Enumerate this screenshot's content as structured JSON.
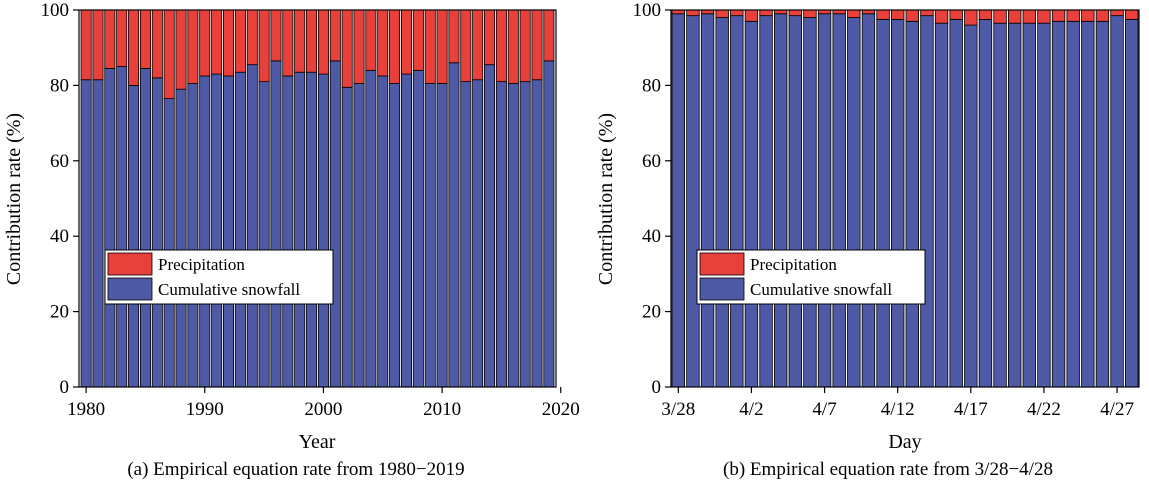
{
  "chart_data": [
    {
      "id": "a",
      "type": "bar",
      "stacked": true,
      "caption": "(a) Empirical equation rate from 1980−2019",
      "xlabel": "Year",
      "ylabel": "Contribution rate (%)",
      "ylim": [
        0,
        100
      ],
      "yticks": [
        0,
        20,
        40,
        60,
        80,
        100
      ],
      "xticks": [
        1980,
        1990,
        2000,
        2010,
        2020
      ],
      "xlim": [
        1979.4,
        2019.6
      ],
      "categories": [
        1980,
        1981,
        1982,
        1983,
        1984,
        1985,
        1986,
        1987,
        1988,
        1989,
        1990,
        1991,
        1992,
        1993,
        1994,
        1995,
        1996,
        1997,
        1998,
        1999,
        2000,
        2001,
        2002,
        2003,
        2004,
        2005,
        2006,
        2007,
        2008,
        2009,
        2010,
        2011,
        2012,
        2013,
        2014,
        2015,
        2016,
        2017,
        2018,
        2019
      ],
      "series": [
        {
          "name": "Cumulative snowfall",
          "color": "#4f5aa6",
          "values": [
            81.5,
            81.5,
            84.5,
            85,
            80,
            84.5,
            82,
            76.5,
            79,
            80.5,
            82.5,
            83,
            82.5,
            83.5,
            85.5,
            81,
            86.5,
            82.5,
            83.5,
            83.5,
            83,
            86.5,
            79.5,
            80.5,
            84,
            82.5,
            80.5,
            83,
            84,
            80.5,
            80.5,
            86,
            81,
            81.5,
            85.5,
            81,
            80.5,
            81,
            81.5,
            86.5
          ]
        },
        {
          "name": "Precipitation",
          "color": "#e8403b",
          "values": [
            18.5,
            18.5,
            15.5,
            15,
            20,
            15.5,
            18,
            23.5,
            21,
            19.5,
            17.5,
            17,
            17.5,
            16.5,
            14.5,
            19,
            13.5,
            17.5,
            16.5,
            16.5,
            17,
            13.5,
            20.5,
            19.5,
            16,
            17.5,
            19.5,
            17,
            16,
            19.5,
            19.5,
            14,
            19,
            18.5,
            14.5,
            19,
            19.5,
            19,
            18.5,
            13.5
          ]
        }
      ],
      "legend": {
        "placement": "center-left",
        "entries": [
          "Precipitation",
          "Cumulative snowfall"
        ]
      },
      "grid": false
    },
    {
      "id": "b",
      "type": "bar",
      "stacked": true,
      "caption": "(b) Empirical equation rate from 3/28−4/28",
      "xlabel": "Day",
      "ylabel": "Contribution rate (%)",
      "ylim": [
        0,
        100
      ],
      "yticks": [
        0,
        20,
        40,
        60,
        80,
        100
      ],
      "xtick_labels": [
        {
          "index": 0,
          "label": "3/28"
        },
        {
          "index": 5,
          "label": "4/2"
        },
        {
          "index": 10,
          "label": "4/7"
        },
        {
          "index": 15,
          "label": "4/12"
        },
        {
          "index": 20,
          "label": "4/17"
        },
        {
          "index": 25,
          "label": "4/22"
        },
        {
          "index": 30,
          "label": "4/27"
        }
      ],
      "categories": [
        "3/28",
        "3/29",
        "3/30",
        "3/31",
        "4/1",
        "4/2",
        "4/3",
        "4/4",
        "4/5",
        "4/6",
        "4/7",
        "4/8",
        "4/9",
        "4/10",
        "4/11",
        "4/12",
        "4/13",
        "4/14",
        "4/15",
        "4/16",
        "4/17",
        "4/18",
        "4/19",
        "4/20",
        "4/21",
        "4/22",
        "4/23",
        "4/24",
        "4/25",
        "4/26",
        "4/27",
        "4/28"
      ],
      "series": [
        {
          "name": "Cumulative snowfall",
          "color": "#4f5aa6",
          "values": [
            99,
            98.5,
            99,
            98,
            98.5,
            97,
            98.5,
            99,
            98.5,
            98,
            99,
            99,
            98,
            99,
            97.5,
            97.5,
            97,
            98.5,
            96.5,
            97.5,
            96,
            97.5,
            96.5,
            96.5,
            96.5,
            96.5,
            97,
            97,
            97,
            97,
            98.5,
            97.5
          ]
        },
        {
          "name": "Precipitation",
          "color": "#e8403b",
          "values": [
            1,
            1.5,
            1,
            2,
            1.5,
            3,
            1.5,
            1,
            1.5,
            2,
            1,
            1,
            2,
            1,
            2.5,
            2.5,
            3,
            1.5,
            3.5,
            2.5,
            4,
            2.5,
            3.5,
            3.5,
            3.5,
            3.5,
            3,
            3,
            3,
            3,
            1.5,
            2.5
          ]
        }
      ],
      "legend": {
        "placement": "center-left",
        "entries": [
          "Precipitation",
          "Cumulative snowfall"
        ]
      },
      "grid": false
    }
  ]
}
